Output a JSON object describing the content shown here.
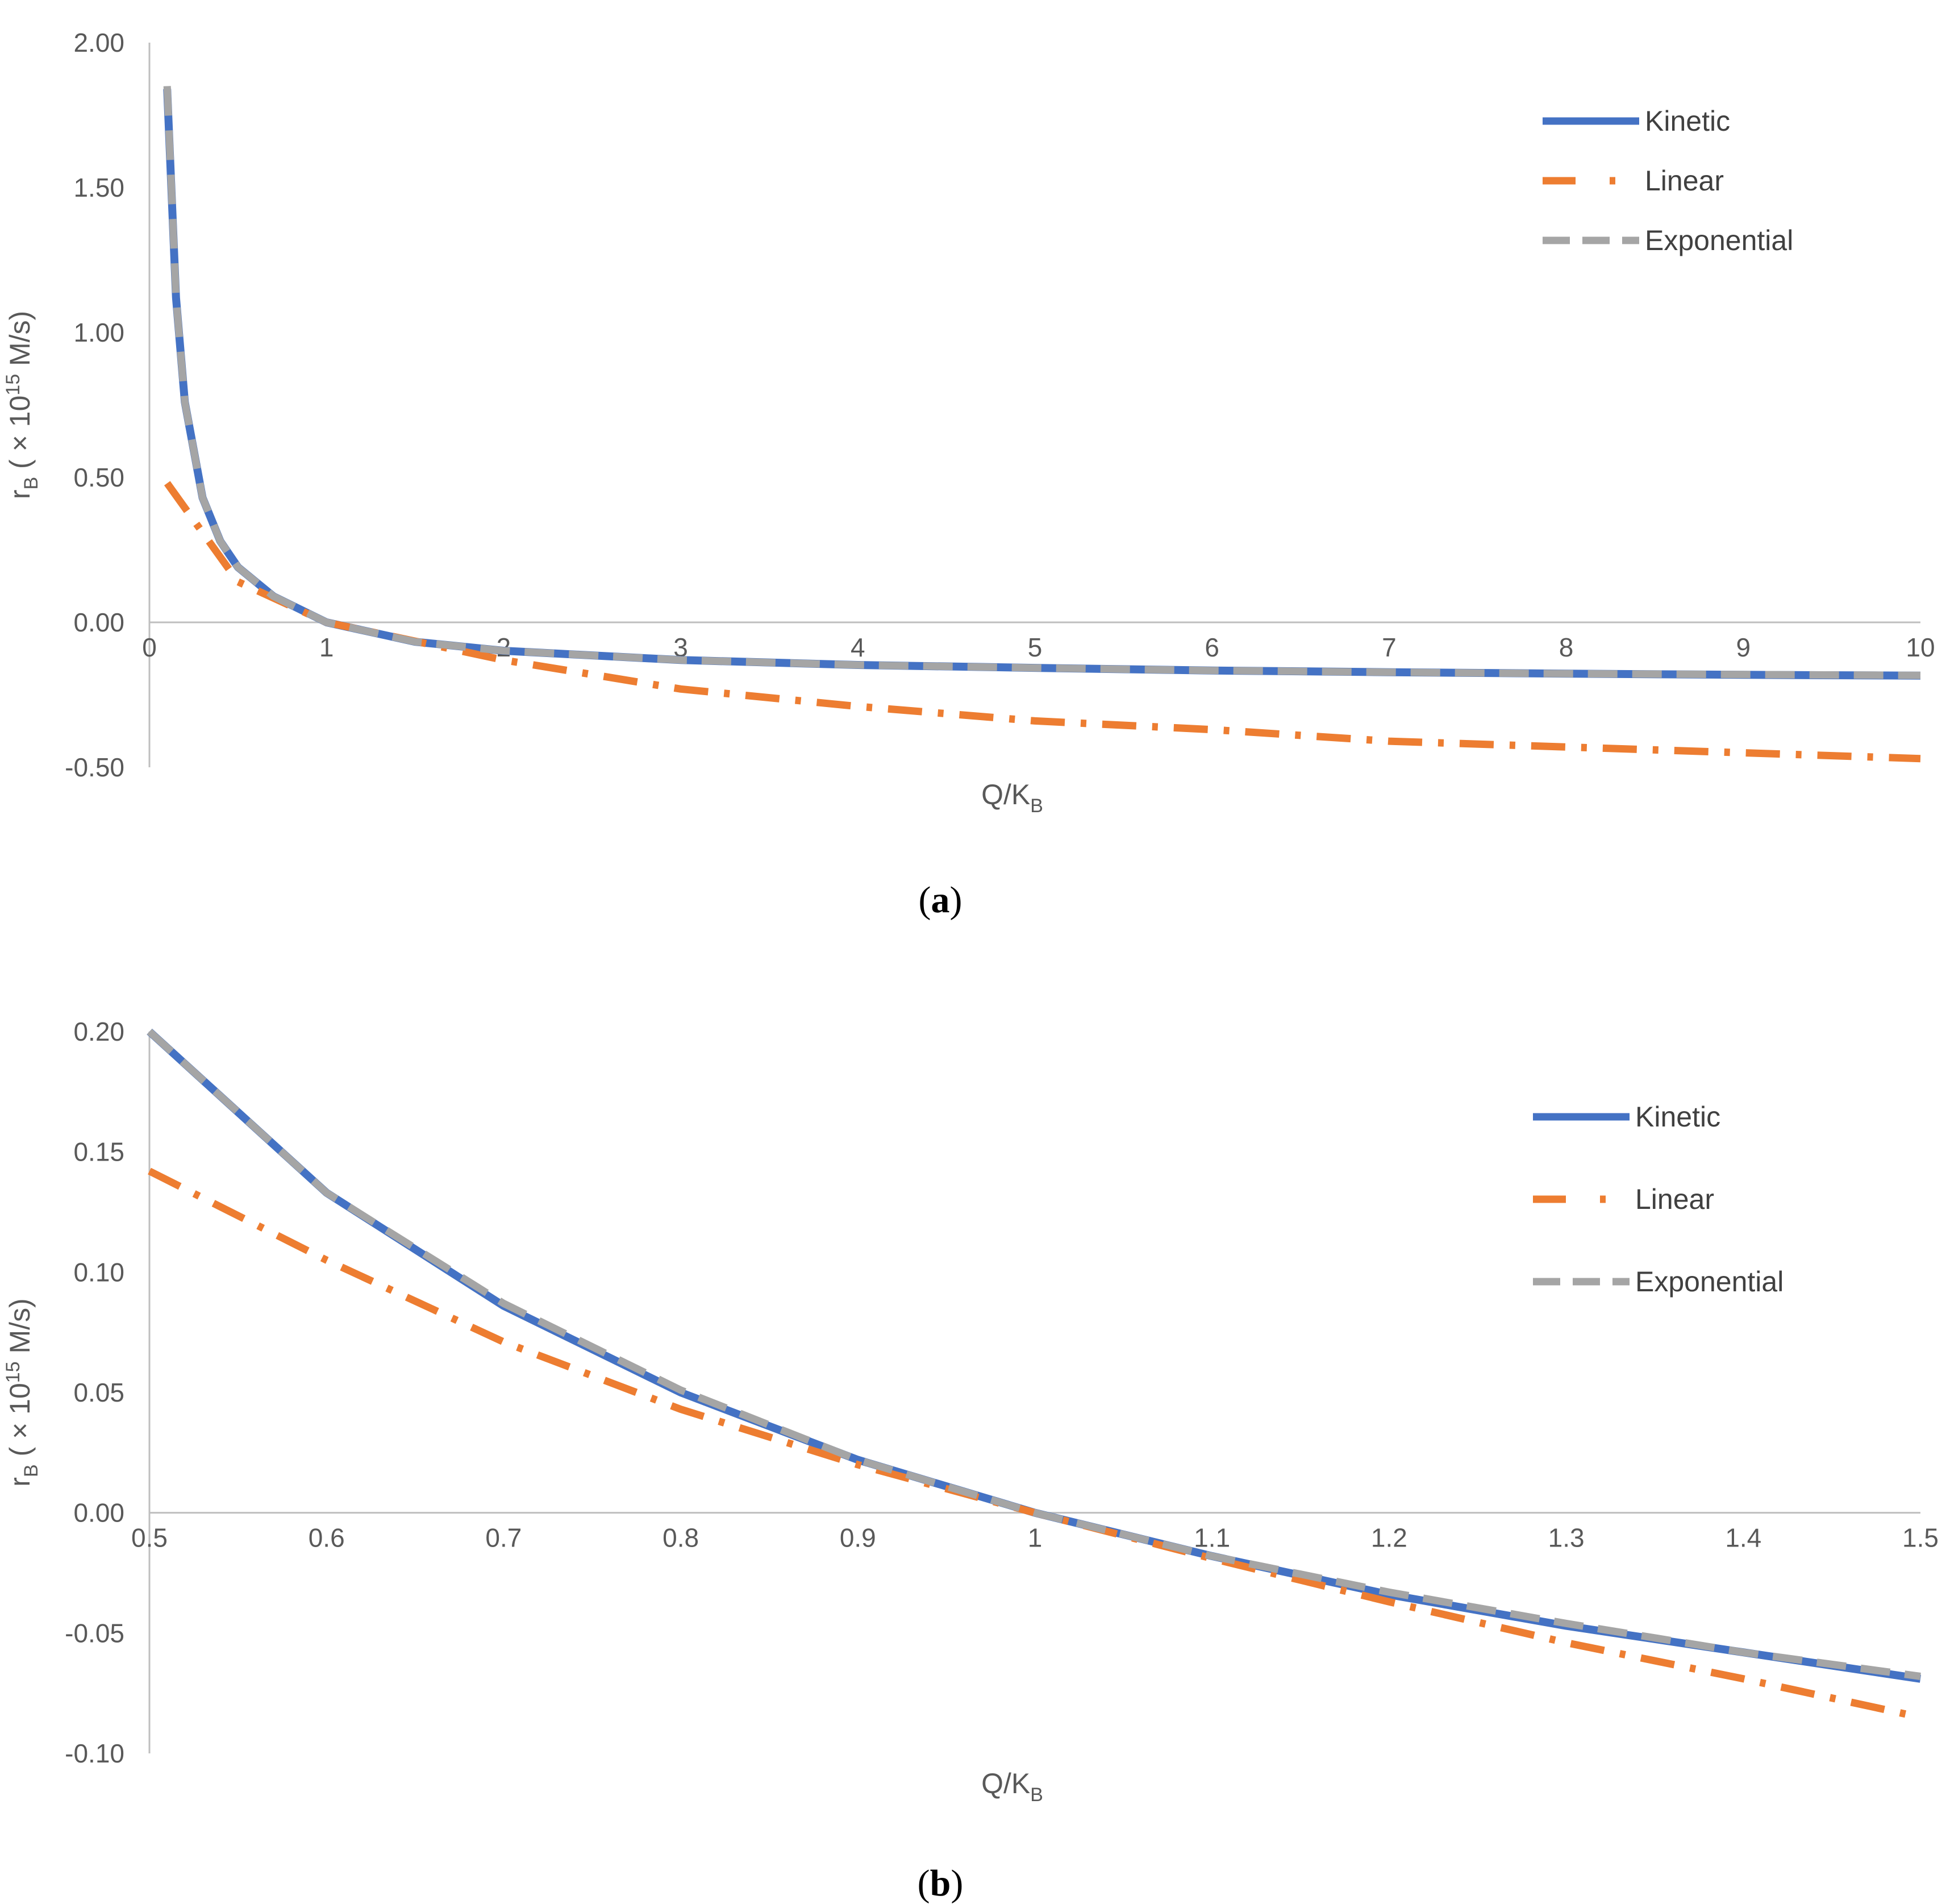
{
  "chart_data": [
    {
      "type": "line",
      "caption_letter": "a",
      "xlabel": "Q/K",
      "xlabel_sub": "B",
      "ylabel_base": "r",
      "ylabel_sub": "B",
      "ylabel_mid": " ( × 10",
      "ylabel_sup": "15",
      "ylabel_end": " M/s)",
      "xlim": [
        0,
        10
      ],
      "ylim": [
        -0.5,
        2.0
      ],
      "x_ticks": [
        "0",
        "1",
        "2",
        "3",
        "4",
        "5",
        "6",
        "7",
        "8",
        "9",
        "10"
      ],
      "y_ticks": [
        "2.00",
        "1.50",
        "1.00",
        "0.50",
        "0.00",
        "-0.50"
      ],
      "legend_position": "top-right",
      "series": [
        {
          "name": "Kinetic",
          "color": "#4472C4",
          "style": "solid",
          "x": [
            0.1,
            0.15,
            0.2,
            0.3,
            0.4,
            0.5,
            0.7,
            1,
            1.5,
            2,
            3,
            4,
            5,
            6,
            7,
            8,
            9,
            10
          ],
          "y": [
            1.84,
            1.12,
            0.76,
            0.43,
            0.28,
            0.19,
            0.09,
            0.0,
            -0.067,
            -0.098,
            -0.13,
            -0.147,
            -0.157,
            -0.166,
            -0.172,
            -0.177,
            -0.181,
            -0.184
          ]
        },
        {
          "name": "Linear",
          "color": "#ED7D31",
          "style": "dashdot",
          "x": [
            0.1,
            0.5,
            1,
            2,
            3,
            4,
            5,
            6,
            7,
            8,
            9,
            10
          ],
          "y": [
            0.48,
            0.14,
            0.0,
            -0.13,
            -0.23,
            -0.29,
            -0.34,
            -0.37,
            -0.41,
            -0.43,
            -0.45,
            -0.47
          ]
        },
        {
          "name": "Exponential",
          "color": "#A5A5A5",
          "style": "dashed",
          "x": [
            0.1,
            0.15,
            0.2,
            0.3,
            0.4,
            0.5,
            0.7,
            1,
            1.5,
            2,
            3,
            4,
            5,
            6,
            7,
            8,
            9,
            10
          ],
          "y": [
            1.85,
            1.12,
            0.76,
            0.43,
            0.28,
            0.19,
            0.09,
            0.0,
            -0.067,
            -0.098,
            -0.13,
            -0.147,
            -0.157,
            -0.166,
            -0.172,
            -0.177,
            -0.18,
            -0.183
          ]
        }
      ]
    },
    {
      "type": "line",
      "caption_letter": "b",
      "xlabel": "Q/K",
      "xlabel_sub": "B",
      "ylabel_base": "r",
      "ylabel_sub": "B",
      "ylabel_mid": " ( × 10",
      "ylabel_sup": "15",
      "ylabel_end": " M/s)",
      "xlim": [
        0.5,
        1.5
      ],
      "ylim": [
        -0.1,
        0.2
      ],
      "x_ticks": [
        "0.5",
        "0.6",
        "0.7",
        "0.8",
        "0.9",
        "1",
        "1.1",
        "1.2",
        "1.3",
        "1.4",
        "1.5"
      ],
      "y_ticks": [
        "0.20",
        "0.15",
        "0.10",
        "0.05",
        "0.00",
        "-0.05",
        "-0.10"
      ],
      "legend_position": "top-right",
      "series": [
        {
          "name": "Kinetic",
          "color": "#4472C4",
          "style": "solid",
          "x": [
            0.5,
            0.6,
            0.7,
            0.8,
            0.9,
            1.0,
            1.1,
            1.2,
            1.3,
            1.4,
            1.5
          ],
          "y": [
            0.2,
            0.133,
            0.086,
            0.05,
            0.022,
            0.0,
            -0.018,
            -0.034,
            -0.047,
            -0.058,
            -0.069
          ]
        },
        {
          "name": "Linear",
          "color": "#ED7D31",
          "style": "dashdot",
          "x": [
            0.5,
            0.6,
            0.7,
            0.8,
            0.9,
            1.0,
            1.1,
            1.2,
            1.3,
            1.4,
            1.5
          ],
          "y": [
            0.142,
            0.105,
            0.071,
            0.043,
            0.02,
            0.0,
            -0.019,
            -0.037,
            -0.054,
            -0.069,
            -0.085
          ]
        },
        {
          "name": "Exponential",
          "color": "#A5A5A5",
          "style": "dashed",
          "x": [
            0.5,
            0.6,
            0.7,
            0.8,
            0.9,
            1.0,
            1.1,
            1.2,
            1.3,
            1.4,
            1.5
          ],
          "y": [
            0.2,
            0.133,
            0.087,
            0.051,
            0.022,
            0.0,
            -0.018,
            -0.033,
            -0.046,
            -0.058,
            -0.068
          ]
        }
      ]
    }
  ]
}
